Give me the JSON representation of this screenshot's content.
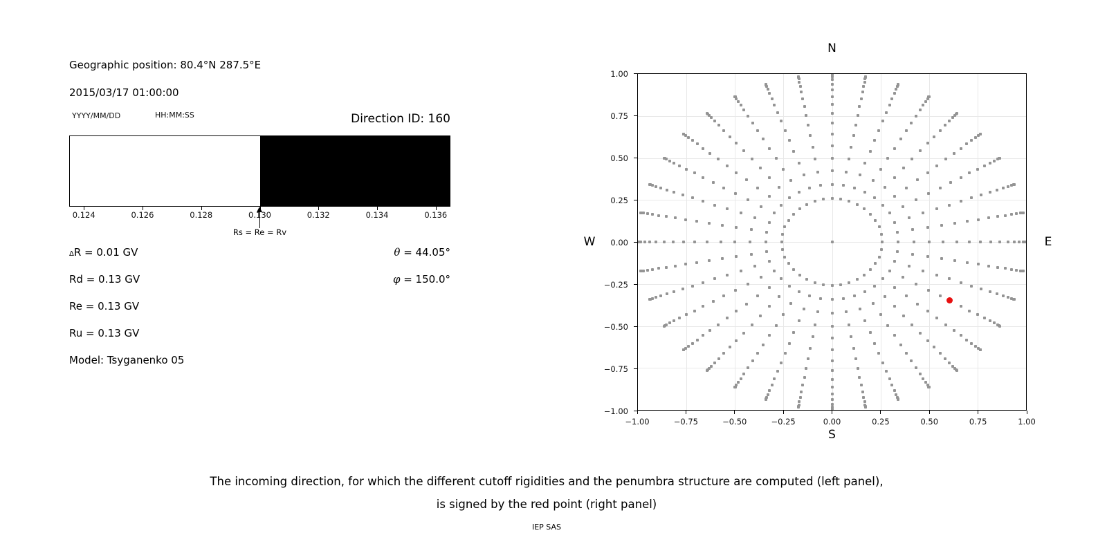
{
  "header": {
    "geo_position": "Geographic position: 80.4°N 287.5°E",
    "datetime": "2015/03/17 01:00:00",
    "date_format_label": "YYYY/MM/DD",
    "time_format_label": "HH:MM:SS",
    "direction_id": "Direction ID: 160"
  },
  "parameters": {
    "delta_symbol": "Δ",
    "delta_rest": "R = 0.01 GV",
    "rd": "Rd = 0.13 GV",
    "re": "Re = 0.13 GV",
    "ru": "Ru = 0.13 GV",
    "model": "Model: Tsyganenko 05",
    "theta_symbol": "θ",
    "theta_rest": " = 44.05°",
    "phi_symbol": "φ",
    "phi_rest": " = 150.0°"
  },
  "compass": {
    "n": "N",
    "s": "S",
    "w": "W",
    "e": "E"
  },
  "footer": {
    "caption_line1": "The incoming direction, for which the different cutoff rigidities and the penumbra structure are computed (left panel),",
    "caption_line2": "is signed by the red point (right panel)",
    "credit": "IEP SAS"
  },
  "chart_data": [
    {
      "type": "heatmap",
      "name": "penumbra-structure",
      "xlim": [
        0.1235,
        0.1365
      ],
      "x_ticks": [
        0.124,
        0.126,
        0.128,
        0.13,
        0.132,
        0.134,
        0.136
      ],
      "x_tick_labels": [
        "0.124",
        "0.126",
        "0.128",
        "0.130",
        "0.132",
        "0.134",
        "0.136"
      ],
      "segments": [
        {
          "from": 0.1235,
          "to": 0.13,
          "color": "#ffffff",
          "meaning": "allowed rigidities"
        },
        {
          "from": 0.13,
          "to": 0.1365,
          "color": "#000000",
          "meaning": "forbidden rigidities"
        }
      ],
      "annotation": {
        "x": 0.13,
        "label": "Rs = Re = Rv"
      }
    },
    {
      "type": "scatter",
      "name": "incoming-direction-grid",
      "top_label": "N",
      "bottom_label": "S",
      "left_label": "W",
      "right_label": "E",
      "xlim": [
        -1.0,
        1.0
      ],
      "ylim": [
        -1.0,
        1.0
      ],
      "grid": true,
      "x_tick_labels": [
        "−1.00",
        "−0.75",
        "−0.50",
        "−0.25",
        "0.00",
        "0.25",
        "0.50",
        "0.75",
        "1.00"
      ],
      "y_tick_labels": [
        "1.00",
        "0.75",
        "0.50",
        "0.25",
        "0.00",
        "−0.25",
        "−0.50",
        "−0.75",
        "−1.00"
      ],
      "series": [
        {
          "name": "direction-grid-points",
          "marker": "square",
          "color": "#949494",
          "generator": {
            "azimuth_deg": {
              "start": 0,
              "stop": 350,
              "step": 10
            },
            "zenith_deg": {
              "start": 15,
              "stop": 90,
              "step": 5
            },
            "radius_rule": "sin(zenith)",
            "include_center_point": true
          }
        },
        {
          "name": "selected-direction",
          "marker": "circle",
          "color": "#e81010",
          "points": [
            [
              0.605,
              -0.348
            ]
          ]
        }
      ]
    }
  ]
}
